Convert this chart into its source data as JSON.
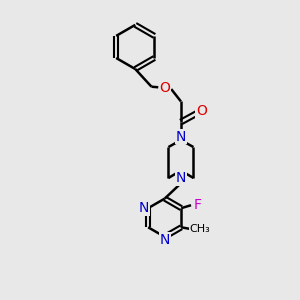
{
  "bg_color": "#e8e8e8",
  "bond_color": "#000000",
  "N_color": "#0000cc",
  "O_color": "#dd0000",
  "F_color": "#cc00cc",
  "line_width": 1.8,
  "figsize": [
    3.0,
    3.0
  ],
  "dpi": 100,
  "xlim": [
    0,
    10
  ],
  "ylim": [
    0,
    10
  ]
}
